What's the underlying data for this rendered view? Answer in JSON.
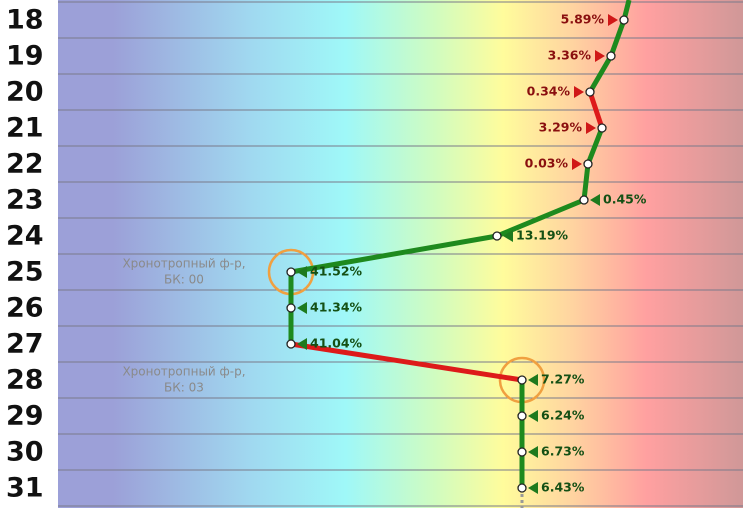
{
  "rows": [
    {
      "label": "18",
      "value": "5.89%",
      "side": "left",
      "color": "#1e8a1e"
    },
    {
      "label": "19",
      "value": "3.36%",
      "side": "left",
      "color": "#1e8a1e"
    },
    {
      "label": "20",
      "value": "0.34%",
      "side": "left",
      "color": "#1e8a1e"
    },
    {
      "label": "21",
      "value": "3.29%",
      "side": "left",
      "color": "#dd1a1a"
    },
    {
      "label": "22",
      "value": "0.03%",
      "side": "left",
      "color": "#1e8a1e"
    },
    {
      "label": "23",
      "value": "0.45%",
      "side": "right",
      "color": "#1e8a1e"
    },
    {
      "label": "24",
      "value": "13.19%",
      "side": "right",
      "color": "#1e8a1e"
    },
    {
      "label": "25",
      "value": "41.52%",
      "side": "right",
      "color": "#1e8a1e"
    },
    {
      "label": "26",
      "value": "41.34%",
      "side": "right",
      "color": "#1e8a1e"
    },
    {
      "label": "27",
      "value": "41.04%",
      "side": "right",
      "color": "#1e8a1e"
    },
    {
      "label": "28",
      "value": "7.27%",
      "side": "right",
      "color": "#dd1a1a"
    },
    {
      "label": "29",
      "value": "6.24%",
      "side": "right",
      "color": "#1e8a1e"
    },
    {
      "label": "30",
      "value": "6.73%",
      "side": "right",
      "color": "#1e8a1e"
    },
    {
      "label": "31",
      "value": "6.43%",
      "side": "right",
      "color": "#1e8a1e"
    }
  ],
  "annotations": [
    {
      "row": 7,
      "lines": [
        "Хронотропный ф-р,",
        "БК: 00"
      ]
    },
    {
      "row": 10,
      "lines": [
        "Хронотропный ф-р,",
        "БК: 03"
      ]
    }
  ]
}
